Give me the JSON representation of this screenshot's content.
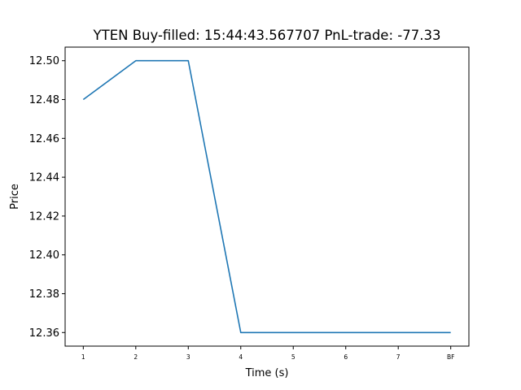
{
  "chart_data": {
    "type": "line",
    "title": "YTEN  Buy-filled:  15:44:43.567707  PnL-trade:  -77.33",
    "xlabel": "Time (s)",
    "ylabel": "Price",
    "categories": [
      "1",
      "2",
      "3",
      "4",
      "5",
      "6",
      "7",
      "BF"
    ],
    "series": [
      {
        "values": [
          12.48,
          12.5,
          12.5,
          12.36,
          12.36,
          12.36,
          12.36,
          12.36
        ],
        "color": "#1f77b4"
      }
    ],
    "ylim": [
      12.353,
      12.507
    ],
    "yticks": [
      "12.36",
      "12.38",
      "12.40",
      "12.42",
      "12.44",
      "12.46",
      "12.48",
      "12.50"
    ],
    "grid": false,
    "legend": "none"
  }
}
